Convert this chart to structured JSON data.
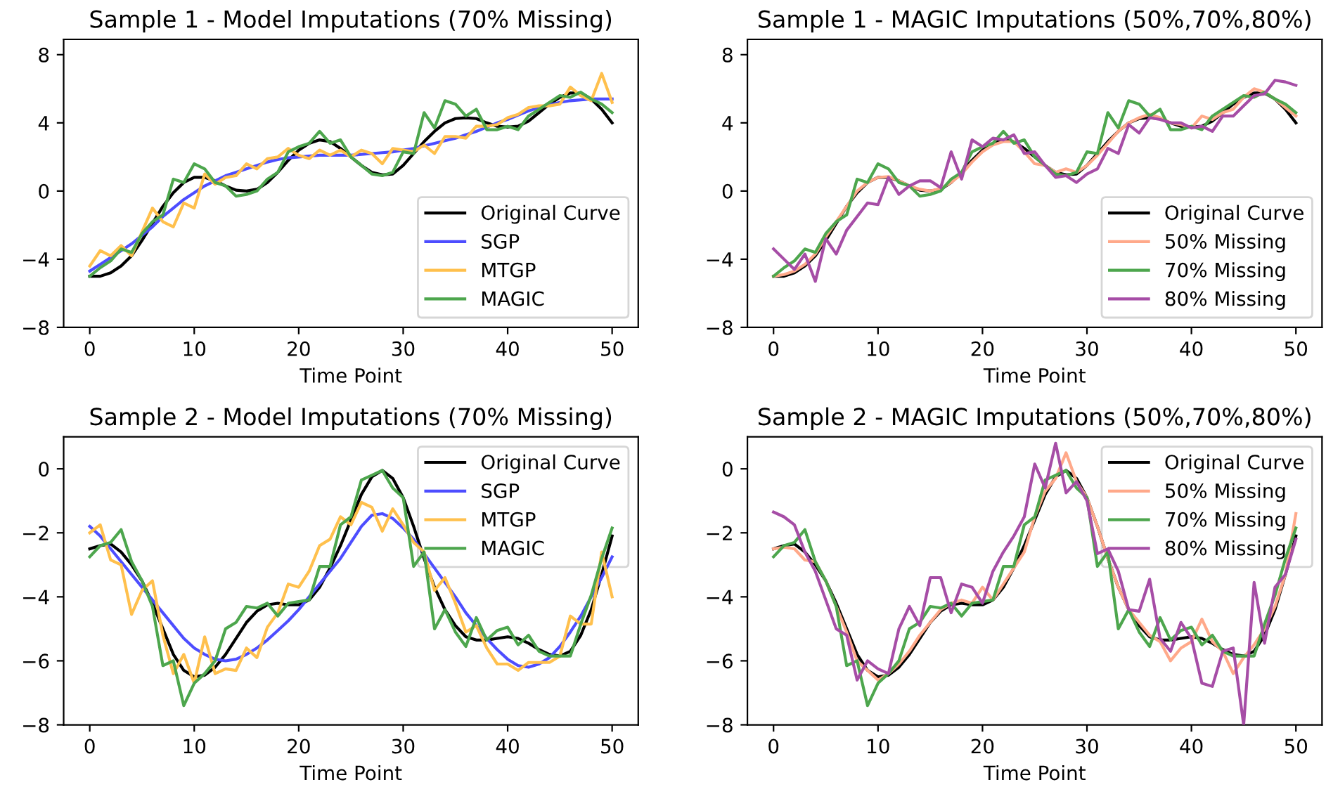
{
  "chart_data": [
    {
      "type": "line",
      "title": "Sample 1 - Model Imputations (70% Missing)",
      "xlabel": "Time Point",
      "xlim": [
        -2.5,
        52.5
      ],
      "xticks": [
        0,
        10,
        20,
        30,
        40,
        50
      ],
      "ylim": [
        -8,
        8.9
      ],
      "yticks": [
        -8,
        -4,
        0,
        4,
        8
      ],
      "legend": "lower right",
      "grid": false,
      "x": [
        0,
        1,
        2,
        3,
        4,
        5,
        6,
        7,
        8,
        9,
        10,
        11,
        12,
        13,
        14,
        15,
        16,
        17,
        18,
        19,
        20,
        21,
        22,
        23,
        24,
        25,
        26,
        27,
        28,
        29,
        30,
        31,
        32,
        33,
        34,
        35,
        36,
        37,
        38,
        39,
        40,
        41,
        42,
        43,
        44,
        45,
        46,
        47,
        48,
        49,
        50
      ],
      "series": [
        {
          "name": "Original Curve",
          "color": "#000000",
          "values": [
            -5,
            -5,
            -4.8,
            -4.4,
            -3.8,
            -2.9,
            -1.9,
            -0.9,
            -0.1,
            0.5,
            0.8,
            0.8,
            0.6,
            0.3,
            0.05,
            0,
            0.1,
            0.5,
            1.1,
            1.8,
            2.4,
            2.8,
            3.0,
            2.9,
            2.5,
            2.0,
            1.5,
            1.1,
            0.95,
            1.0,
            1.5,
            2.2,
            2.9,
            3.5,
            4.0,
            4.25,
            4.3,
            4.25,
            4.0,
            3.8,
            3.75,
            3.8,
            4.1,
            4.6,
            5.1,
            5.5,
            5.75,
            5.75,
            5.4,
            4.8,
            4.0
          ]
        },
        {
          "name": "SGP",
          "color": "#4d4dff",
          "values": [
            -4.7,
            -4.3,
            -3.9,
            -3.5,
            -3.1,
            -2.6,
            -2.1,
            -1.5,
            -1.0,
            -0.5,
            -0.1,
            0.3,
            0.6,
            0.9,
            1.1,
            1.3,
            1.5,
            1.7,
            1.85,
            1.95,
            2.0,
            2.05,
            2.1,
            2.1,
            2.1,
            2.1,
            2.15,
            2.2,
            2.25,
            2.3,
            2.4,
            2.5,
            2.65,
            2.8,
            2.95,
            3.1,
            3.3,
            3.5,
            3.75,
            4.0,
            4.2,
            4.45,
            4.7,
            4.9,
            5.05,
            5.2,
            5.3,
            5.35,
            5.4,
            5.4,
            5.4
          ]
        },
        {
          "name": "MTGP",
          "color": "#ffc04d",
          "values": [
            -4.4,
            -3.5,
            -3.8,
            -3.2,
            -3.8,
            -2.4,
            -1.0,
            -1.8,
            -2.1,
            -0.7,
            -1.0,
            1.0,
            0.4,
            0.8,
            0.9,
            1.6,
            1.3,
            1.9,
            2.0,
            2.5,
            2.1,
            1.9,
            2.4,
            2.1,
            2.4,
            2.0,
            2.4,
            2.2,
            1.6,
            2.5,
            2.4,
            2.3,
            2.7,
            2.2,
            3.2,
            3.2,
            3.1,
            3.8,
            3.8,
            3.9,
            4.3,
            4.5,
            4.9,
            5.0,
            5.0,
            5.1,
            6.1,
            5.6,
            5.3,
            6.9,
            5.2
          ]
        },
        {
          "name": "MAGIC",
          "color": "#4da64d",
          "values": [
            -5.0,
            -4.5,
            -4.1,
            -3.4,
            -3.6,
            -2.5,
            -1.8,
            -1.4,
            0.7,
            0.5,
            1.6,
            1.3,
            0.5,
            0.3,
            -0.3,
            -0.2,
            0.0,
            0.7,
            1.1,
            2.3,
            2.6,
            2.8,
            3.5,
            2.8,
            3.0,
            2.0,
            1.5,
            1.0,
            0.9,
            1.1,
            2.3,
            2.2,
            4.6,
            3.7,
            5.3,
            5.1,
            4.4,
            4.8,
            3.6,
            3.6,
            3.8,
            3.6,
            4.4,
            4.8,
            5.2,
            5.6,
            5.5,
            5.8,
            5.4,
            5.1,
            4.6
          ]
        }
      ]
    },
    {
      "type": "line",
      "title": "Sample 1 - MAGIC Imputations (50%,70%,80%)",
      "xlabel": "Time Point",
      "xlim": [
        -2.5,
        52.5
      ],
      "xticks": [
        0,
        10,
        20,
        30,
        40,
        50
      ],
      "ylim": [
        -8,
        8.9
      ],
      "yticks": [
        -8,
        -4,
        0,
        4,
        8
      ],
      "legend": "lower right",
      "grid": false,
      "x": [
        0,
        1,
        2,
        3,
        4,
        5,
        6,
        7,
        8,
        9,
        10,
        11,
        12,
        13,
        14,
        15,
        16,
        17,
        18,
        19,
        20,
        21,
        22,
        23,
        24,
        25,
        26,
        27,
        28,
        29,
        30,
        31,
        32,
        33,
        34,
        35,
        36,
        37,
        38,
        39,
        40,
        41,
        42,
        43,
        44,
        45,
        46,
        47,
        48,
        49,
        50
      ],
      "series": [
        {
          "name": "Original Curve",
          "color": "#000000",
          "values": [
            -5,
            -5,
            -4.8,
            -4.4,
            -3.8,
            -2.9,
            -1.9,
            -0.9,
            -0.1,
            0.5,
            0.8,
            0.8,
            0.6,
            0.3,
            0.05,
            0,
            0.1,
            0.5,
            1.1,
            1.8,
            2.4,
            2.8,
            3.0,
            2.9,
            2.5,
            2.0,
            1.5,
            1.1,
            0.95,
            1.0,
            1.5,
            2.2,
            2.9,
            3.5,
            4.0,
            4.25,
            4.3,
            4.25,
            4.0,
            3.8,
            3.75,
            3.8,
            4.1,
            4.6,
            5.1,
            5.5,
            5.75,
            5.75,
            5.4,
            4.8,
            4.0
          ]
        },
        {
          "name": "50% Missing",
          "color": "#ffa98a",
          "values": [
            -5,
            -4.9,
            -4.7,
            -4.3,
            -3.7,
            -2.7,
            -1.8,
            -0.9,
            0,
            0.5,
            0.8,
            0.85,
            0.6,
            0.3,
            0.1,
            0.0,
            0.15,
            0.5,
            1.0,
            1.7,
            2.3,
            2.7,
            2.9,
            2.9,
            2.3,
            1.6,
            1.5,
            1.1,
            1.3,
            1.1,
            1.5,
            2.1,
            2.8,
            3.5,
            4.0,
            4.3,
            4.5,
            4.3,
            4.0,
            3.9,
            3.7,
            4.4,
            4.2,
            4.6,
            4.8,
            5.5,
            6.0,
            5.8,
            5.4,
            4.9,
            4.4
          ]
        },
        {
          "name": "70% Missing",
          "color": "#4da64d",
          "values": [
            -5.0,
            -4.5,
            -4.1,
            -3.4,
            -3.6,
            -2.5,
            -1.8,
            -1.4,
            0.7,
            0.5,
            1.6,
            1.3,
            0.5,
            0.3,
            -0.3,
            -0.2,
            0.0,
            0.7,
            1.1,
            2.3,
            2.6,
            2.8,
            3.5,
            2.8,
            3.0,
            2.0,
            1.5,
            1.0,
            0.9,
            1.1,
            2.3,
            2.2,
            4.6,
            3.7,
            5.3,
            5.1,
            4.4,
            4.8,
            3.6,
            3.6,
            3.8,
            3.6,
            4.4,
            4.8,
            5.2,
            5.6,
            5.5,
            5.8,
            5.4,
            5.1,
            4.6
          ]
        },
        {
          "name": "80% Missing",
          "color": "#a64da6",
          "values": [
            -3.4,
            -4.0,
            -4.6,
            -3.7,
            -5.3,
            -2.8,
            -3.7,
            -2.3,
            -1.5,
            -0.7,
            -0.8,
            0.8,
            -0.2,
            0.3,
            0.6,
            0.6,
            0.2,
            2.3,
            0.7,
            3.0,
            2.6,
            3.1,
            3.0,
            3.3,
            2.2,
            2.3,
            1.5,
            0.8,
            0.9,
            0.5,
            1.0,
            1.3,
            2.5,
            2.2,
            3.9,
            3.4,
            4.3,
            4.2,
            4.0,
            4.0,
            3.7,
            3.8,
            3.5,
            4.4,
            4.4,
            5.0,
            5.6,
            5.7,
            6.5,
            6.4,
            6.2
          ]
        }
      ]
    },
    {
      "type": "line",
      "title": "Sample 2 - Model Imputations (70% Missing)",
      "xlabel": "Time Point",
      "xlim": [
        -2.5,
        52.5
      ],
      "xticks": [
        0,
        10,
        20,
        30,
        40,
        50
      ],
      "ylim": [
        -8,
        1
      ],
      "yticks": [
        -8,
        -6,
        -4,
        -2,
        0
      ],
      "legend": "upper right",
      "grid": false,
      "x": [
        0,
        1,
        2,
        3,
        4,
        5,
        6,
        7,
        8,
        9,
        10,
        11,
        12,
        13,
        14,
        15,
        16,
        17,
        18,
        19,
        20,
        21,
        22,
        23,
        24,
        25,
        26,
        27,
        28,
        29,
        30,
        31,
        32,
        33,
        34,
        35,
        36,
        37,
        38,
        39,
        40,
        41,
        42,
        43,
        44,
        45,
        46,
        47,
        48,
        49,
        50
      ],
      "series": [
        {
          "name": "Original Curve",
          "color": "#000000",
          "values": [
            -2.5,
            -2.4,
            -2.35,
            -2.6,
            -3.0,
            -3.5,
            -4.2,
            -5.0,
            -5.8,
            -6.3,
            -6.5,
            -6.45,
            -6.2,
            -5.8,
            -5.3,
            -4.8,
            -4.45,
            -4.25,
            -4.2,
            -4.25,
            -4.25,
            -4.1,
            -3.7,
            -3.1,
            -2.4,
            -1.6,
            -0.8,
            -0.25,
            -0.05,
            -0.3,
            -0.9,
            -1.8,
            -2.8,
            -3.7,
            -4.4,
            -4.9,
            -5.25,
            -5.35,
            -5.35,
            -5.3,
            -5.25,
            -5.3,
            -5.45,
            -5.65,
            -5.8,
            -5.85,
            -5.7,
            -5.2,
            -4.4,
            -3.3,
            -2.1
          ]
        },
        {
          "name": "SGP",
          "color": "#4d4dff",
          "values": [
            -1.8,
            -2.1,
            -2.5,
            -2.9,
            -3.3,
            -3.7,
            -4.1,
            -4.5,
            -4.9,
            -5.3,
            -5.6,
            -5.8,
            -5.95,
            -6.0,
            -5.95,
            -5.8,
            -5.6,
            -5.35,
            -5.05,
            -4.75,
            -4.4,
            -4.0,
            -3.6,
            -3.2,
            -2.8,
            -2.3,
            -1.8,
            -1.45,
            -1.4,
            -1.55,
            -1.85,
            -2.2,
            -2.65,
            -3.1,
            -3.55,
            -4.0,
            -4.5,
            -4.9,
            -5.3,
            -5.65,
            -5.95,
            -6.15,
            -6.2,
            -6.1,
            -5.9,
            -5.55,
            -5.1,
            -4.6,
            -4.0,
            -3.4,
            -2.75
          ]
        },
        {
          "name": "MTGP",
          "color": "#ffc04d",
          "values": [
            -2.0,
            -1.75,
            -2.85,
            -3.0,
            -4.55,
            -3.8,
            -3.5,
            -5.2,
            -6.4,
            -5.8,
            -6.7,
            -5.25,
            -6.4,
            -6.25,
            -6.3,
            -5.6,
            -5.9,
            -4.95,
            -4.5,
            -3.6,
            -3.7,
            -3.2,
            -2.4,
            -2.2,
            -1.5,
            -1.75,
            -1.05,
            -1.2,
            -1.95,
            -1.25,
            -1.75,
            -2.3,
            -2.6,
            -3.8,
            -3.4,
            -4.2,
            -5.1,
            -4.9,
            -5.6,
            -6.1,
            -6.1,
            -6.3,
            -6.05,
            -6.05,
            -6.05,
            -5.85,
            -4.6,
            -4.85,
            -4.85,
            -2.6,
            -4.0
          ]
        },
        {
          "name": "MAGIC",
          "color": "#4da64d",
          "values": [
            -2.75,
            -2.4,
            -2.3,
            -1.9,
            -2.9,
            -3.5,
            -4.3,
            -6.15,
            -6.0,
            -7.4,
            -6.7,
            -6.4,
            -6.0,
            -5.0,
            -4.8,
            -4.3,
            -4.35,
            -4.2,
            -4.6,
            -4.2,
            -4.15,
            -4.1,
            -3.05,
            -3.05,
            -1.75,
            -1.5,
            -0.35,
            -0.2,
            -0.05,
            -0.6,
            -0.9,
            -3.05,
            -2.6,
            -5.0,
            -4.4,
            -5.1,
            -5.55,
            -4.65,
            -5.35,
            -5.05,
            -4.95,
            -5.5,
            -5.2,
            -5.7,
            -5.85,
            -5.85,
            -5.85,
            -4.85,
            -3.95,
            -2.8,
            -1.85
          ]
        }
      ]
    },
    {
      "type": "line",
      "title": "Sample 2 - MAGIC Imputations (50%,70%,80%)",
      "xlabel": "Time Point",
      "xlim": [
        -2.5,
        52.5
      ],
      "xticks": [
        0,
        10,
        20,
        30,
        40,
        50
      ],
      "ylim": [
        -8,
        1
      ],
      "yticks": [
        -8,
        -6,
        -4,
        -2,
        0
      ],
      "legend": "upper right",
      "grid": false,
      "x": [
        0,
        1,
        2,
        3,
        4,
        5,
        6,
        7,
        8,
        9,
        10,
        11,
        12,
        13,
        14,
        15,
        16,
        17,
        18,
        19,
        20,
        21,
        22,
        23,
        24,
        25,
        26,
        27,
        28,
        29,
        30,
        31,
        32,
        33,
        34,
        35,
        36,
        37,
        38,
        39,
        40,
        41,
        42,
        43,
        44,
        45,
        46,
        47,
        48,
        49,
        50
      ],
      "series": [
        {
          "name": "Original Curve",
          "color": "#000000",
          "values": [
            -2.5,
            -2.4,
            -2.35,
            -2.6,
            -3.0,
            -3.5,
            -4.2,
            -5.0,
            -5.8,
            -6.3,
            -6.5,
            -6.45,
            -6.2,
            -5.8,
            -5.3,
            -4.8,
            -4.45,
            -4.25,
            -4.2,
            -4.25,
            -4.25,
            -4.1,
            -3.7,
            -3.1,
            -2.4,
            -1.6,
            -0.8,
            -0.25,
            -0.05,
            -0.3,
            -0.9,
            -1.8,
            -2.8,
            -3.7,
            -4.4,
            -4.9,
            -5.25,
            -5.35,
            -5.35,
            -5.3,
            -5.25,
            -5.3,
            -5.45,
            -5.65,
            -5.8,
            -5.85,
            -5.7,
            -5.2,
            -4.4,
            -3.3,
            -2.1
          ]
        },
        {
          "name": "50% Missing",
          "color": "#ffa98a",
          "values": [
            -2.5,
            -2.45,
            -2.5,
            -2.85,
            -2.9,
            -3.5,
            -4.3,
            -5.1,
            -6.0,
            -6.3,
            -6.6,
            -6.4,
            -6.1,
            -5.7,
            -5.2,
            -4.8,
            -4.4,
            -4.2,
            -4.1,
            -4.2,
            -3.7,
            -4.1,
            -3.6,
            -3.1,
            -2.6,
            -1.5,
            -0.7,
            -0.3,
            0.5,
            -0.4,
            -0.9,
            -1.8,
            -2.8,
            -3.7,
            -4.4,
            -4.8,
            -5.2,
            -5.4,
            -6.0,
            -5.6,
            -5.4,
            -4.7,
            -5.4,
            -5.7,
            -6.4,
            -5.9,
            -5.5,
            -5.0,
            -4.3,
            -3.3,
            -1.4
          ]
        },
        {
          "name": "70% Missing",
          "color": "#4da64d",
          "values": [
            -2.75,
            -2.4,
            -2.3,
            -1.9,
            -2.9,
            -3.5,
            -4.3,
            -6.15,
            -6.0,
            -7.4,
            -6.7,
            -6.4,
            -6.0,
            -5.0,
            -4.8,
            -4.3,
            -4.35,
            -4.2,
            -4.6,
            -4.2,
            -4.15,
            -4.1,
            -3.05,
            -3.05,
            -1.75,
            -1.5,
            -0.35,
            -0.2,
            -0.05,
            -0.6,
            -0.9,
            -3.05,
            -2.6,
            -5.0,
            -4.4,
            -5.1,
            -5.55,
            -4.65,
            -5.35,
            -5.05,
            -4.95,
            -5.5,
            -5.2,
            -5.7,
            -5.85,
            -5.85,
            -5.85,
            -4.85,
            -3.95,
            -2.8,
            -1.85
          ]
        },
        {
          "name": "80% Missing",
          "color": "#a64da6",
          "values": [
            -1.35,
            -1.5,
            -1.75,
            -2.6,
            -3.2,
            -4.1,
            -5.0,
            -5.2,
            -6.6,
            -6.0,
            -6.25,
            -6.4,
            -5.0,
            -4.3,
            -4.9,
            -3.4,
            -3.4,
            -4.5,
            -3.6,
            -3.7,
            -4.2,
            -3.2,
            -2.6,
            -2.1,
            -1.5,
            0.15,
            -0.6,
            0.8,
            -0.75,
            -0.4,
            -1.0,
            -2.65,
            -2.5,
            -3.2,
            -4.4,
            -4.45,
            -3.45,
            -5.3,
            -5.7,
            -4.8,
            -5.3,
            -6.7,
            -6.8,
            -5.7,
            -5.6,
            -8.0,
            -3.55,
            -5.45,
            -3.7,
            -3.3,
            -2.2
          ]
        }
      ]
    }
  ]
}
